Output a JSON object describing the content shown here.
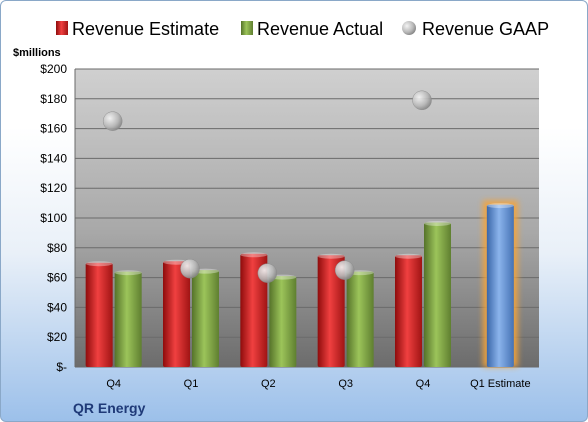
{
  "chart_data": {
    "type": "bar",
    "title": "",
    "company": "QR Energy",
    "ylabel": "$millions",
    "ylim": [
      0,
      200
    ],
    "ytick_step": 20,
    "ytick_labels": [
      "$-",
      "$20",
      "$40",
      "$60",
      "$80",
      "$100",
      "$120",
      "$140",
      "$160",
      "$180",
      "$200"
    ],
    "categories": [
      "Q4",
      "Q1",
      "Q2",
      "Q3",
      "Q4",
      "Q1 Estimate"
    ],
    "legend_position": "top",
    "grid": true,
    "series": [
      {
        "name": "Revenue Estimate",
        "kind": "bar",
        "color": "#d42020",
        "values": [
          70,
          71,
          76,
          75,
          75,
          null
        ]
      },
      {
        "name": "Revenue Actual",
        "kind": "bar",
        "color": "#7fa640",
        "values": [
          64,
          65,
          61,
          64,
          97,
          null
        ]
      },
      {
        "name": "Revenue GAAP",
        "kind": "marker",
        "color": "#b0b0b0",
        "values": [
          165,
          66,
          63,
          65,
          179,
          null
        ]
      }
    ],
    "forecast": {
      "category": "Q1 Estimate",
      "value": 109,
      "color": "#5b8ed6",
      "highlight": "#f5a43a"
    }
  }
}
